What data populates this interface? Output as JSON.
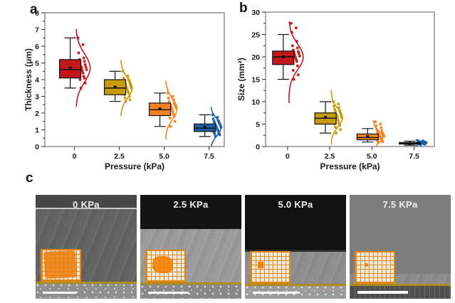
{
  "panels": {
    "a": "a",
    "b": "b",
    "c": "c"
  },
  "chart_data": [
    {
      "id": "a",
      "type": "box-scatter-violin",
      "title": "",
      "xlabel": "Pressure (kPa)",
      "ylabel": "Thickness (μm)",
      "ylim": [
        0,
        8
      ],
      "yticks": [
        0,
        1,
        2,
        3,
        4,
        5,
        6,
        7,
        8
      ],
      "yminor": 0.5,
      "categories": [
        "0",
        "2.5",
        "5.0",
        "7.5"
      ],
      "groups": [
        {
          "category": "0",
          "color": "#c2181c",
          "whisker_low": 3.5,
          "q1": 4.1,
          "median": 4.6,
          "mean": 4.7,
          "q3": 5.2,
          "whisker_high": 6.5,
          "points": [
            6.5,
            6.1,
            5.6,
            5.3,
            5.2,
            5.1,
            5.0,
            4.9,
            4.8,
            4.75,
            4.7,
            4.6,
            4.55,
            4.5,
            4.4,
            4.3,
            4.2,
            4.15,
            4.1,
            4.0,
            3.8,
            3.5
          ],
          "violin": {
            "mu": 4.7,
            "sigma": 0.85,
            "lo": 2.4,
            "hi": 7.0,
            "amp": 20
          }
        },
        {
          "category": "2.5",
          "color": "#c79a0a",
          "whisker_low": 2.7,
          "q1": 3.1,
          "median": 3.5,
          "mean": 3.55,
          "q3": 4.0,
          "whisker_high": 4.5,
          "points": [
            4.5,
            4.2,
            4.1,
            4.0,
            3.95,
            3.9,
            3.8,
            3.75,
            3.7,
            3.6,
            3.55,
            3.5,
            3.45,
            3.4,
            3.3,
            3.25,
            3.2,
            3.1,
            3.0,
            2.9,
            2.8,
            2.7
          ],
          "violin": {
            "mu": 3.5,
            "sigma": 0.6,
            "lo": 1.85,
            "hi": 5.15,
            "amp": 16
          }
        },
        {
          "category": "5.0",
          "color": "#f58220",
          "whisker_low": 1.2,
          "q1": 1.85,
          "median": 2.2,
          "mean": 2.25,
          "q3": 2.6,
          "whisker_high": 3.2,
          "points": [
            3.2,
            3.0,
            2.9,
            2.8,
            2.7,
            2.6,
            2.55,
            2.5,
            2.45,
            2.4,
            2.35,
            2.3,
            2.25,
            2.2,
            2.1,
            2.0,
            1.95,
            1.9,
            1.8,
            1.7,
            1.5,
            1.2
          ],
          "violin": {
            "mu": 2.25,
            "sigma": 0.62,
            "lo": 0.45,
            "hi": 3.9,
            "amp": 16
          }
        },
        {
          "category": "7.5",
          "color": "#1f5fa8",
          "whisker_low": 0.6,
          "q1": 0.9,
          "median": 1.1,
          "mean": 1.15,
          "q3": 1.35,
          "whisker_high": 1.9,
          "points": [
            1.9,
            1.75,
            1.65,
            1.55,
            1.5,
            1.45,
            1.4,
            1.35,
            1.3,
            1.25,
            1.2,
            1.15,
            1.1,
            1.05,
            1.0,
            0.95,
            0.9,
            0.85,
            0.8,
            0.75,
            0.7,
            0.6
          ],
          "violin": {
            "mu": 1.15,
            "sigma": 0.5,
            "lo": 0.05,
            "hi": 2.35,
            "amp": 15
          }
        }
      ]
    },
    {
      "id": "b",
      "type": "box-scatter-violin",
      "title": "",
      "xlabel": "Pressure (kPa)",
      "ylabel": "Size (mm²)",
      "ylim": [
        0,
        30
      ],
      "yticks": [
        0,
        5,
        10,
        15,
        20,
        25,
        30
      ],
      "yminor": 2.5,
      "categories": [
        "0",
        "2.5",
        "5.0",
        "7.5"
      ],
      "groups": [
        {
          "category": "0",
          "color": "#c2181c",
          "whisker_low": 15,
          "q1": 18.3,
          "median": 20,
          "mean": 20,
          "q3": 21.3,
          "whisker_high": 25,
          "points": [
            27.5,
            26.5,
            25.5,
            23.5,
            22.5,
            22,
            21.5,
            21.2,
            21,
            20.8,
            20.5,
            20.2,
            20,
            19.8,
            19.5,
            19.2,
            19,
            18.5,
            18,
            17,
            16,
            15
          ],
          "violin": {
            "mu": 20,
            "sigma": 2.9,
            "lo": 9.8,
            "hi": 27.8,
            "amp": 20
          }
        },
        {
          "category": "2.5",
          "color": "#c79a0a",
          "whisker_low": 3,
          "q1": 5,
          "median": 6.3,
          "mean": 6.5,
          "q3": 7.5,
          "whisker_high": 10,
          "points": [
            10,
            9.5,
            9,
            8.7,
            8.3,
            8,
            7.8,
            7.5,
            7.2,
            7,
            6.8,
            6.5,
            6.3,
            6,
            5.8,
            5.5,
            5.2,
            5,
            4.7,
            4.3,
            3.8,
            3
          ],
          "violin": {
            "mu": 6.4,
            "sigma": 2.0,
            "lo": 0.5,
            "hi": 12.5,
            "amp": 16
          }
        },
        {
          "category": "5.0",
          "color": "#f58220",
          "whisker_low": 1,
          "q1": 1.5,
          "median": 2,
          "mean": 2.2,
          "q3": 2.8,
          "whisker_high": 4,
          "points": [
            5.5,
            5,
            4.6,
            4.2,
            3.8,
            3.5,
            3.2,
            3,
            2.8,
            2.6,
            2.5,
            2.3,
            2.2,
            2,
            1.9,
            1.8,
            1.7,
            1.6,
            1.5,
            1.3,
            1.1,
            0.9
          ],
          "violin": {
            "mu": 2.1,
            "sigma": 1.3,
            "lo": -0.8,
            "hi": 5.8,
            "amp": 13
          }
        },
        {
          "category": "7.5",
          "color": "#1f5fa8",
          "box_color": "#1b2f4d",
          "whisker_low": 0.3,
          "q1": 0.55,
          "median": 0.7,
          "mean": 0.72,
          "q3": 0.9,
          "whisker_high": 1.2,
          "points": [
            1.3,
            1.25,
            1.2,
            1.15,
            1.1,
            1.05,
            1,
            0.98,
            0.95,
            0.9,
            0.88,
            0.85,
            0.8,
            0.78,
            0.75,
            0.7,
            0.68,
            0.65,
            0.6,
            0.55,
            0.5,
            0.4
          ],
          "violin": {
            "mu": 0.8,
            "sigma": 0.35,
            "lo": 0.1,
            "hi": 1.5,
            "amp": 6
          }
        }
      ]
    }
  ],
  "sem_panel": {
    "images": [
      {
        "label": "0 KPa",
        "inset_coverage": 0.85
      },
      {
        "label": "2.5 KPa",
        "inset_coverage": 0.4
      },
      {
        "label": "5.0 KPa",
        "inset_coverage": 0.04
      },
      {
        "label": "7.5 KPa",
        "inset_coverage": 0.01
      }
    ]
  }
}
